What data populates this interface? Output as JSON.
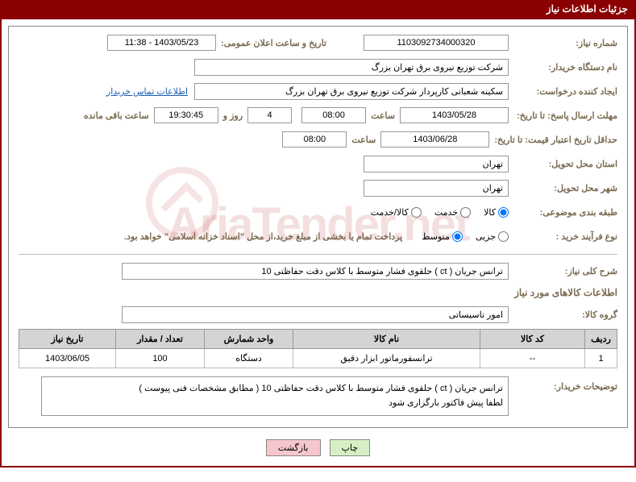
{
  "title_bar": "جزئیات اطلاعات نیاز",
  "fields": {
    "need_no_label": "شماره نیاز:",
    "need_no": "1103092734000320",
    "announce_label": "تاریخ و ساعت اعلان عمومی:",
    "announce_datetime": "1403/05/23 - 11:38",
    "buyer_org_label": "نام دستگاه خریدار:",
    "buyer_org": "شرکت توزیع نیروی برق تهران بزرگ",
    "requester_label": "ایجاد کننده درخواست:",
    "requester": "سکینه شعبانی کارپرداز شرکت توزیع نیروی برق تهران بزرگ",
    "contact_link": "اطلاعات تماس خریدار",
    "deadline_label": "مهلت ارسال پاسخ: تا تاریخ:",
    "deadline_date": "1403/05/28",
    "time_label": "ساعت",
    "deadline_time": "08:00",
    "days_remain": "4",
    "days_label": "روز و",
    "countdown": "19:30:45",
    "remain_label": "ساعت باقی مانده",
    "validity_label": "حداقل تاریخ اعتبار قیمت: تا تاریخ:",
    "validity_date": "1403/06/28",
    "validity_time": "08:00",
    "province_label": "استان محل تحویل:",
    "province": "تهران",
    "city_label": "شهر محل تحویل:",
    "city": "تهران",
    "category_label": "طبقه بندی موضوعی:",
    "cat_goods": "کالا",
    "cat_service": "خدمت",
    "cat_both": "کالا/خدمت",
    "proc_label": "نوع فرآیند خرید :",
    "proc_minor": "جزیی",
    "proc_medium": "متوسط",
    "proc_note": "پرداخت تمام یا بخشی از مبلغ خرید،از محل \"اسناد خزانه اسلامی\" خواهد بود.",
    "desc_label": "شرح کلی نیاز:",
    "desc": "ترانس جریان ( ct ) حلقوی فشار متوسط با کلاس دقت حفاظتی 10",
    "items_section": "اطلاعات کالاهای مورد نیاز",
    "group_label": "گروه کالا:",
    "group": "امور تاسیساتی",
    "explain_label": "توضیحات خریدار:",
    "explain": "ترانس جریان ( ct ) حلقوی فشار متوسط با کلاس دقت حفاظتی 10 ( مطابق مشخصات فنی پیوست )\nلطفا پیش فاکتور بارگزاری شود",
    "btn_print": "چاپ",
    "btn_back": "بازگشت"
  },
  "table": {
    "headers": {
      "row": "ردیف",
      "code": "کد کالا",
      "name": "نام کالا",
      "unit": "واحد شمارش",
      "qty": "تعداد / مقدار",
      "date": "تاریخ نیاز"
    },
    "rows": [
      {
        "row": "1",
        "code": "--",
        "name": "ترانسفورماتور ابزار دقیق",
        "unit": "دستگاه",
        "qty": "100",
        "date": "1403/06/05"
      }
    ]
  }
}
